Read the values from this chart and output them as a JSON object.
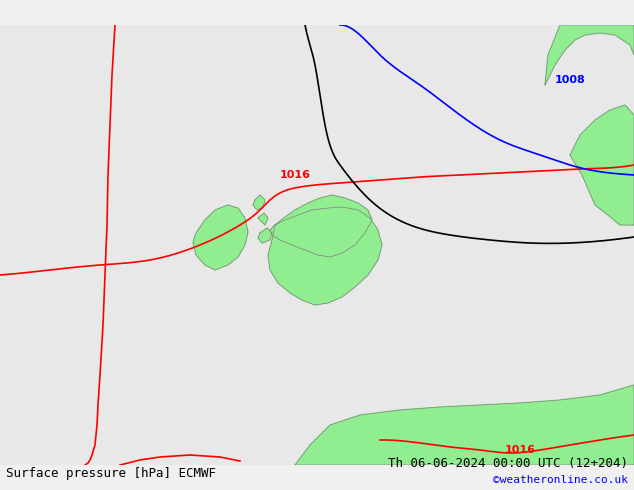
{
  "title_left": "Surface pressure [hPa] ECMWF",
  "title_right": "Th 06-06-2024 00:00 UTC (12+204)",
  "credit": "©weatheronline.co.uk",
  "bg_color": "#e8e8e8",
  "land_color": "#90EE90",
  "border_color": "#808080",
  "isobar_1016_label": "1016",
  "isobar_1008_label": "1008",
  "isobar_1016_bottom_label": "1016",
  "red_line_color": "#ff0000",
  "black_line_color": "#000000",
  "blue_line_color": "#0000ff",
  "label_fontsize": 9,
  "footer_fontsize": 9,
  "credit_color": "#0000ff"
}
